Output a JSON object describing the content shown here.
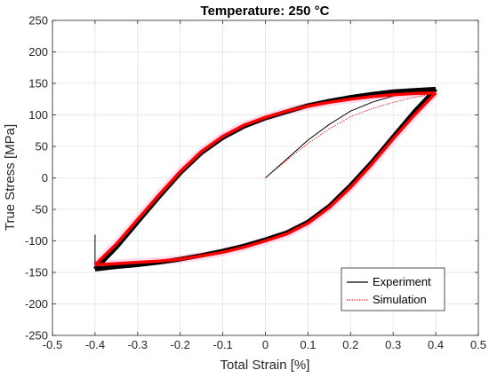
{
  "chart_data": {
    "type": "line",
    "title": "Temperature: 250 °C",
    "xlabel": "Total Strain [%]",
    "ylabel": "True Stress [MPa]",
    "xlim": [
      -0.5,
      0.5
    ],
    "ylim": [
      -250,
      250
    ],
    "xticks": [
      -0.5,
      -0.4,
      -0.3,
      -0.2,
      -0.1,
      0,
      0.1,
      0.2,
      0.3,
      0.4,
      0.5
    ],
    "yticks": [
      -250,
      -200,
      -150,
      -100,
      -50,
      0,
      50,
      100,
      150,
      200,
      250
    ],
    "grid": true,
    "legend_position": "bottom-right",
    "series": [
      {
        "name": "Experiment",
        "color": "#000000",
        "style": "solid",
        "initial_loading": {
          "x": [
            0,
            0.05,
            0.1,
            0.15,
            0.2,
            0.25,
            0.3,
            0.35,
            0.4
          ],
          "y": [
            0,
            30,
            60,
            85,
            106,
            120,
            130,
            137,
            141
          ]
        },
        "upper_branch": {
          "x": [
            -0.4,
            -0.35,
            -0.3,
            -0.25,
            -0.2,
            -0.15,
            -0.1,
            -0.05,
            0,
            0.05,
            0.1,
            0.15,
            0.2,
            0.25,
            0.3,
            0.35,
            0.4
          ],
          "y": [
            -145,
            -110,
            -70,
            -30,
            8,
            40,
            64,
            82,
            95,
            105,
            115,
            122,
            128,
            133,
            137,
            139,
            141
          ]
        },
        "lower_branch": {
          "x": [
            0.4,
            0.35,
            0.3,
            0.25,
            0.2,
            0.15,
            0.1,
            0.05,
            0,
            -0.05,
            -0.1,
            -0.15,
            -0.2,
            -0.25,
            -0.3,
            -0.35,
            -0.4
          ],
          "y": [
            141,
            105,
            65,
            25,
            -12,
            -45,
            -70,
            -87,
            -98,
            -108,
            -116,
            -123,
            -129,
            -134,
            -138,
            -141,
            -145
          ]
        },
        "spike": {
          "x": [
            -0.4,
            -0.4
          ],
          "y": [
            -90,
            -145
          ]
        }
      },
      {
        "name": "Simulation",
        "color": "#ff0000",
        "style": "dotted",
        "initial_loading": {
          "x": [
            0,
            0.05,
            0.1,
            0.15,
            0.2,
            0.25,
            0.3,
            0.35,
            0.4
          ],
          "y": [
            0,
            28,
            55,
            78,
            97,
            110,
            120,
            128,
            135
          ]
        },
        "upper_branch": {
          "x": [
            -0.4,
            -0.35,
            -0.3,
            -0.25,
            -0.2,
            -0.15,
            -0.1,
            -0.05,
            0,
            0.05,
            0.1,
            0.15,
            0.2,
            0.25,
            0.3,
            0.35,
            0.4
          ],
          "y": [
            -138,
            -105,
            -66,
            -27,
            10,
            42,
            66,
            84,
            96,
            106,
            114,
            120,
            125,
            129,
            132,
            134,
            135
          ]
        },
        "lower_branch": {
          "x": [
            0.4,
            0.35,
            0.3,
            0.25,
            0.2,
            0.15,
            0.1,
            0.05,
            0,
            -0.05,
            -0.1,
            -0.15,
            -0.2,
            -0.25,
            -0.3,
            -0.35,
            -0.4
          ],
          "y": [
            135,
            100,
            62,
            22,
            -15,
            -47,
            -72,
            -89,
            -100,
            -110,
            -118,
            -124,
            -129,
            -132,
            -134,
            -136,
            -138
          ]
        }
      }
    ]
  }
}
